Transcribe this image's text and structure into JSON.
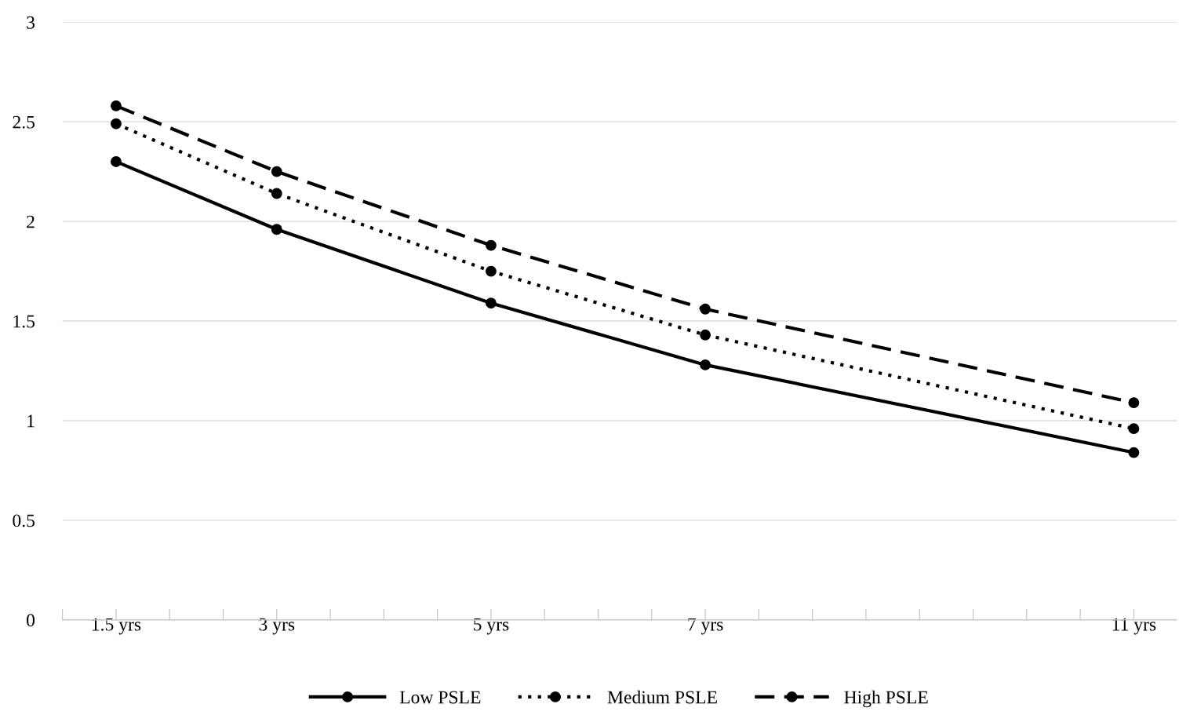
{
  "chart_data": {
    "type": "line",
    "x": [
      1.5,
      3,
      5,
      7,
      11
    ],
    "series": [
      {
        "name": "Low PSLE",
        "color": "#000000",
        "line_style": "solid",
        "values": [
          2.3,
          1.96,
          1.59,
          1.28,
          0.84
        ]
      },
      {
        "name": "Medium PSLE",
        "color": "#000000",
        "line_style": "dotted",
        "values": [
          2.49,
          2.14,
          1.75,
          1.43,
          0.96
        ]
      },
      {
        "name": "High PSLE",
        "color": "#000000",
        "line_style": "dashed",
        "values": [
          2.58,
          2.25,
          1.88,
          1.56,
          1.09
        ]
      }
    ],
    "marker": "circle",
    "xlim": [
      1,
      11.4
    ],
    "xticks": [
      {
        "value": 1,
        "label": null
      },
      {
        "value": 1.5,
        "label": "1.5 yrs"
      },
      {
        "value": 2,
        "label": null
      },
      {
        "value": 2.5,
        "label": null
      },
      {
        "value": 3,
        "label": "3 yrs"
      },
      {
        "value": 3.5,
        "label": null
      },
      {
        "value": 4,
        "label": null
      },
      {
        "value": 4.5,
        "label": null
      },
      {
        "value": 5,
        "label": "5 yrs"
      },
      {
        "value": 5.5,
        "label": null
      },
      {
        "value": 6,
        "label": null
      },
      {
        "value": 6.5,
        "label": null
      },
      {
        "value": 7,
        "label": "7 yrs"
      },
      {
        "value": 7.5,
        "label": null
      },
      {
        "value": 8,
        "label": null
      },
      {
        "value": 8.5,
        "label": null
      },
      {
        "value": 9,
        "label": null
      },
      {
        "value": 9.5,
        "label": null
      },
      {
        "value": 10,
        "label": null
      },
      {
        "value": 10.5,
        "label": null
      },
      {
        "value": 11,
        "label": "11 yrs"
      }
    ],
    "ylim": [
      0,
      3
    ],
    "yticks": [
      0,
      0.5,
      1,
      1.5,
      2,
      2.5,
      3
    ],
    "grid": "y",
    "legend": "bottom"
  }
}
